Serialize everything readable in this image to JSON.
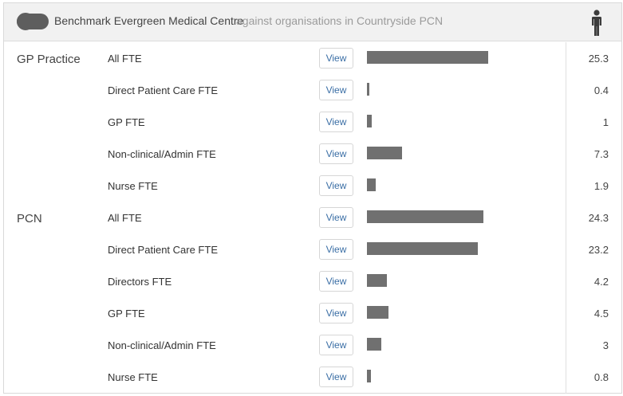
{
  "header": {
    "toggle_state": "on",
    "title": "Benchmark Evergreen Medical Centre",
    "subtitle": "against organisations in Countryside PCN",
    "icon": "person-icon"
  },
  "colors": {
    "bar": "#707070",
    "view_text": "#3a6ea5",
    "header_bg": "#f1f1f1"
  },
  "bar_scale_max": 25.3,
  "rows": [
    {
      "group": "GP Practice",
      "metric": "All FTE",
      "view": "View",
      "value": "25.3",
      "amount": 25.3
    },
    {
      "group": "",
      "metric": "Direct Patient Care FTE",
      "view": "View",
      "value": "0.4",
      "amount": 0.4
    },
    {
      "group": "",
      "metric": "GP FTE",
      "view": "View",
      "value": "1",
      "amount": 1
    },
    {
      "group": "",
      "metric": "Non-clinical/Admin FTE",
      "view": "View",
      "value": "7.3",
      "amount": 7.3
    },
    {
      "group": "",
      "metric": "Nurse FTE",
      "view": "View",
      "value": "1.9",
      "amount": 1.9
    },
    {
      "group": "PCN",
      "metric": "All FTE",
      "view": "View",
      "value": "24.3",
      "amount": 24.3
    },
    {
      "group": "",
      "metric": "Direct Patient Care FTE",
      "view": "View",
      "value": "23.2",
      "amount": 23.2
    },
    {
      "group": "",
      "metric": "Directors FTE",
      "view": "View",
      "value": "4.2",
      "amount": 4.2
    },
    {
      "group": "",
      "metric": "GP FTE",
      "view": "View",
      "value": "4.5",
      "amount": 4.5
    },
    {
      "group": "",
      "metric": "Non-clinical/Admin FTE",
      "view": "View",
      "value": "3",
      "amount": 3
    },
    {
      "group": "",
      "metric": "Nurse FTE",
      "view": "View",
      "value": "0.8",
      "amount": 0.8
    }
  ]
}
